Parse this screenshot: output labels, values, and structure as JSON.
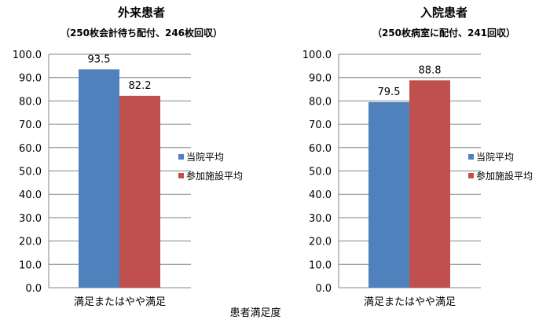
{
  "chart_data": [
    {
      "type": "bar",
      "title": "外来患者",
      "subtitle": "（250枚会計待ち配付、246枚回収）",
      "categories": [
        "満足またはやや満足"
      ],
      "series": [
        {
          "name": "当院平均",
          "values": [
            93.5
          ],
          "color": "#4F81BD"
        },
        {
          "name": "参加施設平均",
          "values": [
            82.2
          ],
          "color": "#C0504D"
        }
      ],
      "ylim": [
        0,
        100
      ],
      "yticks": [
        "0.0",
        "10.0",
        "20.0",
        "30.0",
        "40.0",
        "50.0",
        "60.0",
        "70.0",
        "80.0",
        "90.0",
        "100.0"
      ],
      "grid": true,
      "legend": "right"
    },
    {
      "type": "bar",
      "title": "入院患者",
      "subtitle": "（250枚病室に配付、241回収）",
      "categories": [
        "満足またはやや満足"
      ],
      "series": [
        {
          "name": "当院平均",
          "values": [
            79.5
          ],
          "color": "#4F81BD"
        },
        {
          "name": "参加施設平均",
          "values": [
            88.8
          ],
          "color": "#C0504D"
        }
      ],
      "ylim": [
        0,
        100
      ],
      "yticks": [
        "0.0",
        "10.0",
        "20.0",
        "30.0",
        "40.0",
        "50.0",
        "60.0",
        "70.0",
        "80.0",
        "90.0",
        "100.0"
      ],
      "grid": true,
      "legend": "right"
    }
  ],
  "xaxis_caption": "患者満足度"
}
